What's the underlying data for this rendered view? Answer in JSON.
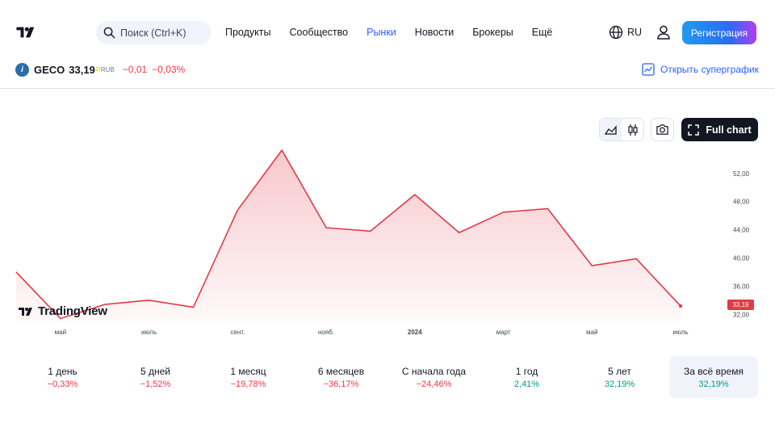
{
  "header": {
    "search_placeholder": "Поиск (Ctrl+K)",
    "nav": [
      {
        "label": "Продукты",
        "active": false
      },
      {
        "label": "Сообщество",
        "active": false
      },
      {
        "label": "Рынки",
        "active": true
      },
      {
        "label": "Новости",
        "active": false
      },
      {
        "label": "Брокеры",
        "active": false
      },
      {
        "label": "Ещё",
        "active": false
      }
    ],
    "language": "RU",
    "register_label": "Регистрация"
  },
  "ticker": {
    "icon_letter": "i",
    "symbol": "GECO",
    "price": "33,19",
    "price_marker": "D",
    "currency": "RUB",
    "change_abs": "−0,01",
    "change_pct": "−0,03%",
    "supergraph_label": "Открыть суперграфик"
  },
  "toolbar": {
    "full_chart_label": "Full chart"
  },
  "watermark": "TradingView",
  "current_price_label": "33,19",
  "colors": {
    "line": "#e23a47",
    "accent": "#2962ff",
    "negative": "#f23645",
    "positive": "#089981"
  },
  "chart_data": {
    "type": "area",
    "x": [
      "2023-04",
      "2023-05",
      "2023-06",
      "2023-07",
      "2023-08",
      "2023-09",
      "2023-10",
      "2023-11",
      "2023-12",
      "2024-01",
      "2024-02",
      "2024-03",
      "2024-04",
      "2024-05",
      "2024-06",
      "2024-07"
    ],
    "values": [
      38.0,
      31.4,
      33.4,
      34.0,
      33.0,
      46.8,
      55.3,
      44.3,
      43.8,
      49.0,
      43.6,
      46.5,
      47.0,
      38.9,
      39.9,
      33.19
    ],
    "x_tick_labels": [
      {
        "label": "май",
        "index": 1,
        "bold": false
      },
      {
        "label": "июль",
        "index": 3,
        "bold": false
      },
      {
        "label": "сент.",
        "index": 5,
        "bold": false
      },
      {
        "label": "нояб.",
        "index": 7,
        "bold": false
      },
      {
        "label": "2024",
        "index": 9,
        "bold": true
      },
      {
        "label": "март",
        "index": 11,
        "bold": false
      },
      {
        "label": "май",
        "index": 13,
        "bold": false
      },
      {
        "label": "июль",
        "index": 15,
        "bold": false
      }
    ],
    "y_ticks": [
      "32,00",
      "36,00",
      "40,00",
      "44,00",
      "48,00",
      "52,00"
    ],
    "y_tick_values": [
      32,
      36,
      40,
      44,
      48,
      52
    ],
    "ylim": [
      31.0,
      54.5
    ],
    "grid": false,
    "legend": "none",
    "last_value_label": "33,19"
  },
  "periods": [
    {
      "label": "1 день",
      "value": "−0,33%",
      "sign": "neg",
      "selected": false
    },
    {
      "label": "5 дней",
      "value": "−1,52%",
      "sign": "neg",
      "selected": false
    },
    {
      "label": "1 месяц",
      "value": "−19,78%",
      "sign": "neg",
      "selected": false
    },
    {
      "label": "6 месяцев",
      "value": "−36,17%",
      "sign": "neg",
      "selected": false
    },
    {
      "label": "С начала года",
      "value": "−24,46%",
      "sign": "neg",
      "selected": false
    },
    {
      "label": "1 год",
      "value": "2,41%",
      "sign": "pos",
      "selected": false
    },
    {
      "label": "5 лет",
      "value": "32,19%",
      "sign": "pos",
      "selected": false
    },
    {
      "label": "За всё время",
      "value": "32,19%",
      "sign": "pos",
      "selected": true
    }
  ]
}
